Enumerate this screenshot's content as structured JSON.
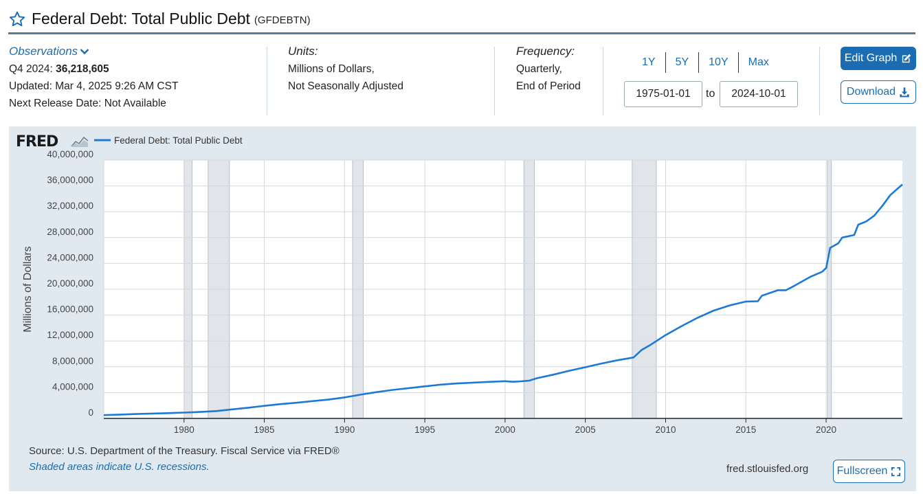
{
  "header": {
    "title": "Federal Debt: Total Public Debt",
    "series_id": "(GFDEBTN)"
  },
  "observations": {
    "label": "Observations",
    "latest_label": "Q4 2024:",
    "latest_value": "36,218,605",
    "updated": "Updated: Mar 4, 2025 9:26 AM CST",
    "next_release": "Next Release Date: Not Available"
  },
  "units": {
    "label": "Units:",
    "line1": "Millions of Dollars,",
    "line2": "Not Seasonally Adjusted"
  },
  "frequency": {
    "label": "Frequency:",
    "line1": "Quarterly,",
    "line2": "End of Period"
  },
  "range": {
    "buttons": [
      "1Y",
      "5Y",
      "10Y",
      "Max"
    ],
    "start": "1975-01-01",
    "to_label": "to",
    "end": "2024-10-01"
  },
  "actions": {
    "edit_graph": "Edit Graph",
    "download": "Download",
    "fullscreen": "Fullscreen"
  },
  "footer": {
    "source": "U.S. Department of the Treasury. Fiscal Service via FRED®",
    "source_prefix": "Source:",
    "shaded_note": "Shaded areas indicate U.S. recessions.",
    "url": "fred.stlouisfed.org"
  },
  "colors": {
    "accent": "#1a6db3",
    "line": "#1a7ad6",
    "panel": "#e1e9f0",
    "recession": "#e1e5e9"
  },
  "chart_data": {
    "type": "line",
    "logo": "FRED",
    "legend_position": "top-left",
    "series": [
      {
        "name": "Federal Debt: Total Public Debt",
        "x": [
          1975.0,
          1976.0,
          1977.0,
          1978.0,
          1979.0,
          1980.0,
          1981.0,
          1982.0,
          1983.0,
          1984.0,
          1985.0,
          1986.0,
          1987.0,
          1988.0,
          1989.0,
          1990.0,
          1991.0,
          1992.0,
          1993.0,
          1994.0,
          1995.0,
          1996.0,
          1997.0,
          1998.0,
          1999.0,
          2000.0,
          2000.5,
          2001.0,
          2001.5,
          2002.0,
          2003.0,
          2004.0,
          2005.0,
          2006.0,
          2007.0,
          2008.0,
          2008.5,
          2009.0,
          2010.0,
          2011.0,
          2012.0,
          2013.0,
          2014.0,
          2015.0,
          2015.75,
          2016.0,
          2017.0,
          2017.5,
          2018.0,
          2019.0,
          2019.75,
          2020.0,
          2020.25,
          2020.75,
          2021.0,
          2021.75,
          2022.0,
          2022.5,
          2023.0,
          2023.5,
          2024.0,
          2024.75
        ],
        "y": [
          510000,
          600000,
          680000,
          760000,
          820000,
          900000,
          1000000,
          1140000,
          1400000,
          1660000,
          1950000,
          2210000,
          2430000,
          2680000,
          2920000,
          3260000,
          3680000,
          4070000,
          4410000,
          4690000,
          4970000,
          5230000,
          5420000,
          5540000,
          5660000,
          5770000,
          5670000,
          5740000,
          5850000,
          6230000,
          6780000,
          7380000,
          7930000,
          8500000,
          9010000,
          9440000,
          10600000,
          11300000,
          12900000,
          14300000,
          15600000,
          16700000,
          17500000,
          18100000,
          18150000,
          19000000,
          19850000,
          19850000,
          20500000,
          21900000,
          22700000,
          23300000,
          26400000,
          27100000,
          28000000,
          28400000,
          30000000,
          30500000,
          31400000,
          32900000,
          34600000,
          36218605
        ]
      }
    ],
    "recessions": [
      [
        1980.0,
        1980.5
      ],
      [
        1981.5,
        1982.83
      ],
      [
        1990.5,
        1991.17
      ],
      [
        2001.17,
        2001.83
      ],
      [
        2007.92,
        2009.42
      ],
      [
        2020.08,
        2020.33
      ]
    ],
    "ylabel": "Millions of Dollars",
    "xlim": [
      1975.0,
      2024.75
    ],
    "ylim": [
      0,
      40000000
    ],
    "y_ticks": [
      0,
      4000000,
      8000000,
      12000000,
      16000000,
      20000000,
      24000000,
      28000000,
      32000000,
      36000000,
      40000000
    ],
    "y_tick_labels": [
      "0",
      "4,000,000",
      "8,000,000",
      "12,000,000",
      "16,000,000",
      "20,000,000",
      "24,000,000",
      "28,000,000",
      "32,000,000",
      "36,000,000",
      "40,000,000"
    ],
    "x_ticks": [
      1980,
      1985,
      1990,
      1995,
      2000,
      2005,
      2010,
      2015,
      2020
    ],
    "x_tick_labels": [
      "1980",
      "1985",
      "1990",
      "1995",
      "2000",
      "2005",
      "2010",
      "2015",
      "2020"
    ],
    "grid": true
  }
}
